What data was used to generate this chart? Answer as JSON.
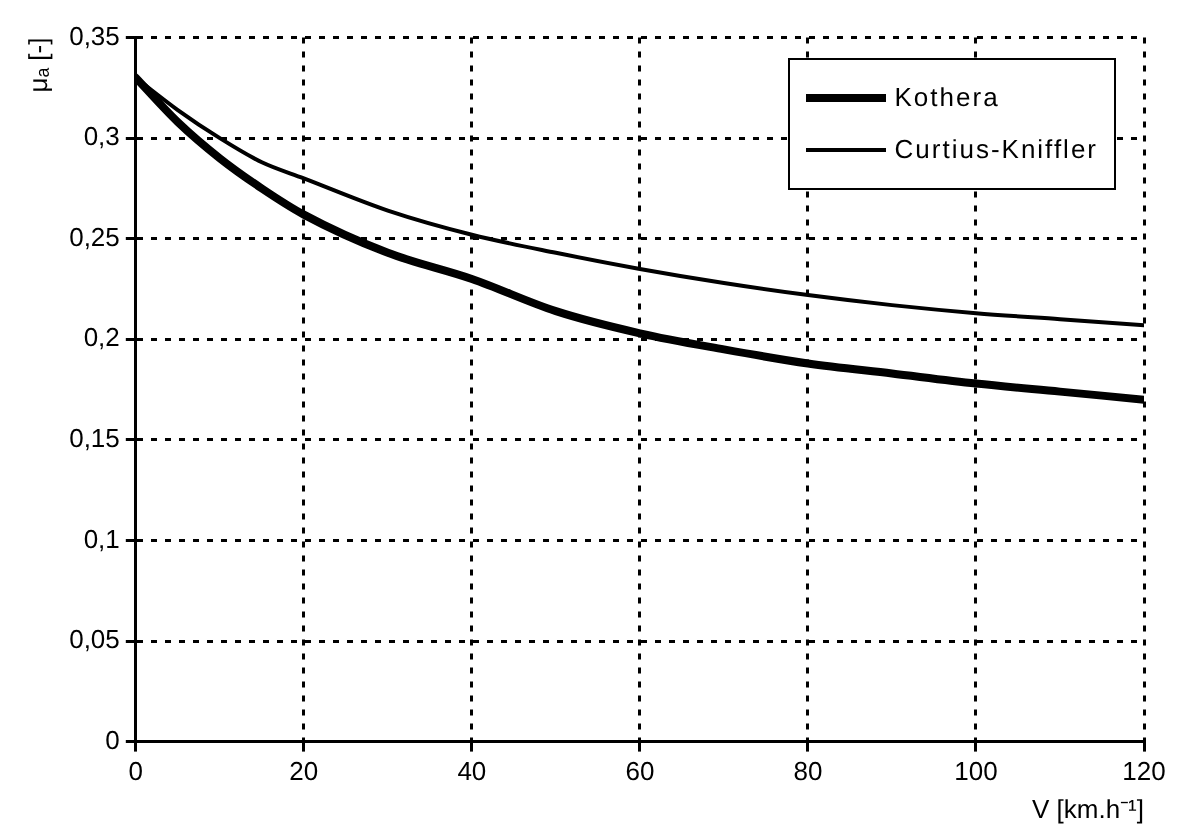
{
  "chart_data": {
    "type": "line",
    "xlabel": "V [km.h⁻¹]",
    "ylabel": "μₐ [-]",
    "xlim": [
      0,
      120
    ],
    "xticks": [
      0,
      20,
      40,
      60,
      80,
      100,
      120
    ],
    "ylim": [
      0,
      0.35
    ],
    "yticks": [
      0,
      {
        "value": 0.05,
        "label": "0,05"
      },
      {
        "value": 0.1,
        "label": "0,1"
      },
      {
        "value": 0.15,
        "label": "0,15"
      },
      {
        "value": 0.2,
        "label": "0,2"
      },
      {
        "value": 0.25,
        "label": "0,25"
      },
      {
        "value": 0.3,
        "label": "0,3"
      },
      {
        "value": 0.35,
        "label": "0,35"
      }
    ],
    "grid": true,
    "legend": "top right",
    "marker": "none",
    "series": [
      {
        "name": "Kothera",
        "color": "#000000",
        "x": [
          0,
          5,
          10,
          15,
          20,
          30,
          40,
          50,
          60,
          70,
          80,
          90,
          100,
          110,
          120
        ],
        "values": [
          0.33,
          0.308,
          0.29,
          0.275,
          0.262,
          0.243,
          0.23,
          0.214,
          0.203,
          0.195,
          0.188,
          0.183,
          0.178,
          0.174,
          0.17
        ]
      },
      {
        "name": "Curtius-Kniffler",
        "color": "#000000",
        "x": [
          0,
          5,
          10,
          15,
          20,
          30,
          40,
          50,
          60,
          70,
          80,
          90,
          100,
          110,
          120
        ],
        "values": [
          0.33,
          0.314,
          0.3,
          0.288,
          0.28,
          0.264,
          0.252,
          0.243,
          0.235,
          0.228,
          0.222,
          0.217,
          0.213,
          0.21,
          0.207
        ]
      }
    ]
  }
}
